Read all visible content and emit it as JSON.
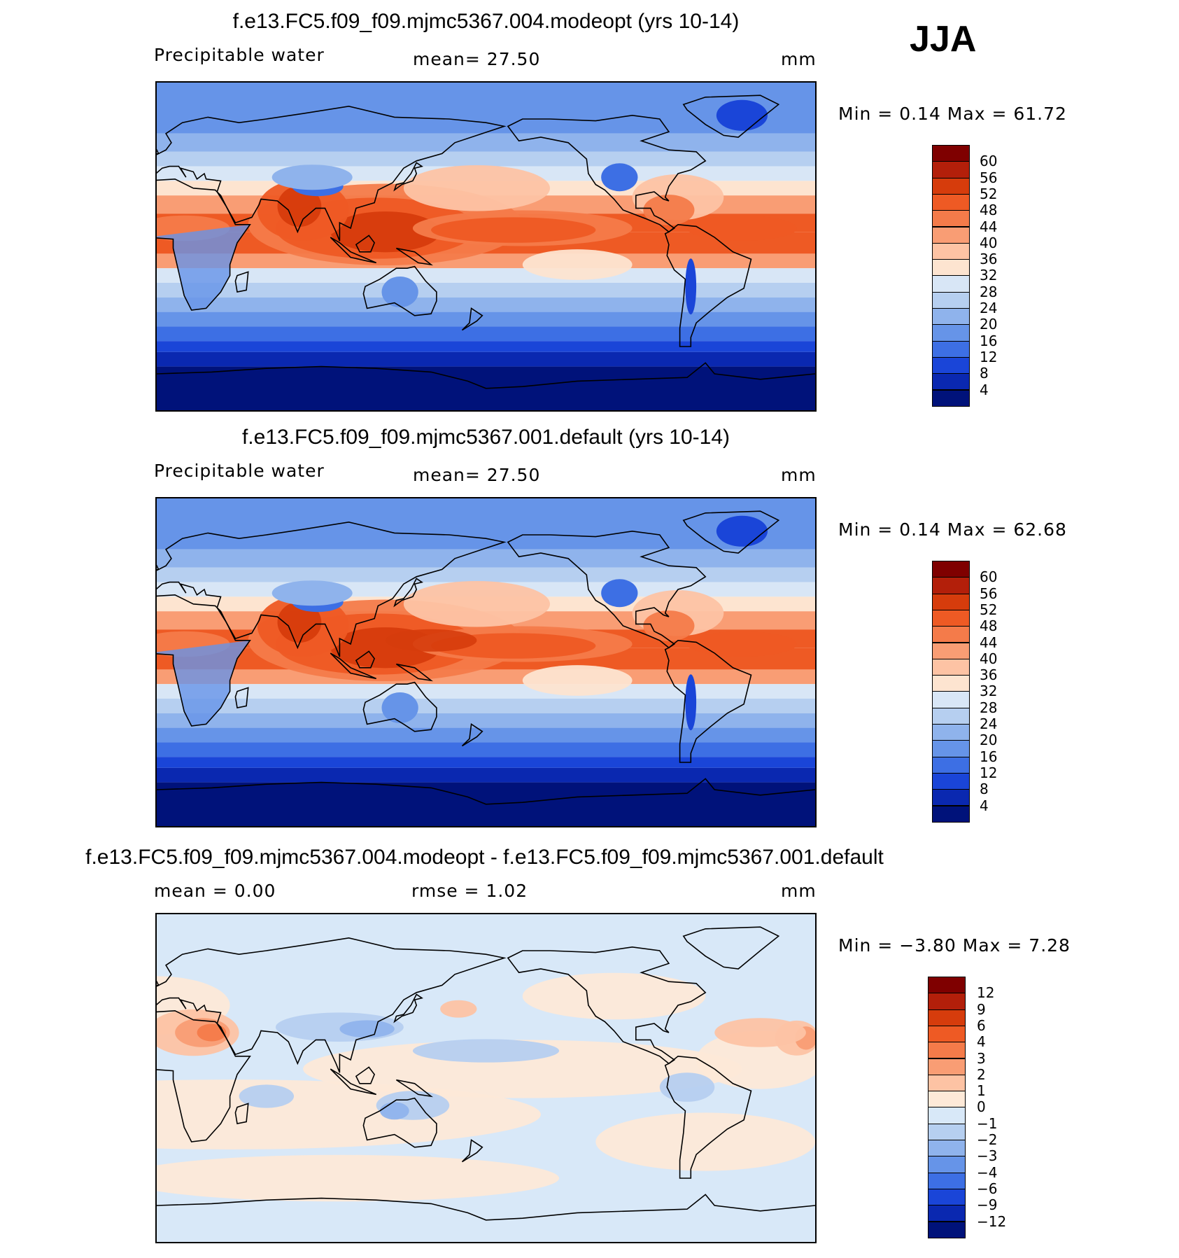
{
  "season": "JJA",
  "panels": [
    {
      "id": "modeopt",
      "title": "f.e13.FC5.f09_f09.mjmc5367.004.modeopt (yrs 10-14)",
      "variable": "Precipitable water",
      "stat1": "mean=   27.50",
      "stat2": "",
      "units": "mm",
      "minmax": "Min =    0.14  Max =    61.72",
      "field": "total",
      "colorbar_labels": [
        "60",
        "56",
        "52",
        "48",
        "44",
        "40",
        "36",
        "32",
        "28",
        "24",
        "20",
        "16",
        "12",
        "8",
        "4"
      ]
    },
    {
      "id": "default",
      "title": "f.e13.FC5.f09_f09.mjmc5367.001.default (yrs 10-14)",
      "variable": "Precipitable water",
      "stat1": "mean=   27.50",
      "stat2": "",
      "units": "mm",
      "minmax": "Min =    0.14  Max =    62.68",
      "field": "total",
      "colorbar_labels": [
        "60",
        "56",
        "52",
        "48",
        "44",
        "40",
        "36",
        "32",
        "28",
        "24",
        "20",
        "16",
        "12",
        "8",
        "4"
      ]
    },
    {
      "id": "difference",
      "title": "f.e13.FC5.f09_f09.mjmc5367.004.modeopt - f.e13.FC5.f09_f09.mjmc5367.001.default",
      "variable": "",
      "stat1": "mean =     0.00",
      "stat2": "rmse =     1.02",
      "units": "mm",
      "minmax": "Min =  −3.80  Max =     7.28",
      "field": "diff",
      "colorbar_labels": [
        "12",
        "9",
        "6",
        "4",
        "3",
        "2",
        "1",
        "0",
        "−1",
        "−2",
        "−3",
        "−4",
        "−6",
        "−9",
        "−12"
      ]
    }
  ],
  "colors": {
    "total_palette": [
      "#7f0000",
      "#b31f0a",
      "#d63c0c",
      "#ee5a24",
      "#f47b4a",
      "#f99d74",
      "#fdc3a4",
      "#fde4d0",
      "#d8e6f6",
      "#b6cff0",
      "#8fb3ec",
      "#6694e8",
      "#3d6fe4",
      "#1a45d8",
      "#0a28b0",
      "#00127a"
    ],
    "diff_palette": [
      "#7f0000",
      "#b31f0a",
      "#d63c0c",
      "#ee5a24",
      "#f47b4a",
      "#f99d74",
      "#fdc3a4",
      "#fde9d8",
      "#d8e8f8",
      "#b6cff0",
      "#8fb3ec",
      "#6694e8",
      "#3d6fe4",
      "#1a45d8",
      "#0a28b0",
      "#00127a"
    ]
  }
}
